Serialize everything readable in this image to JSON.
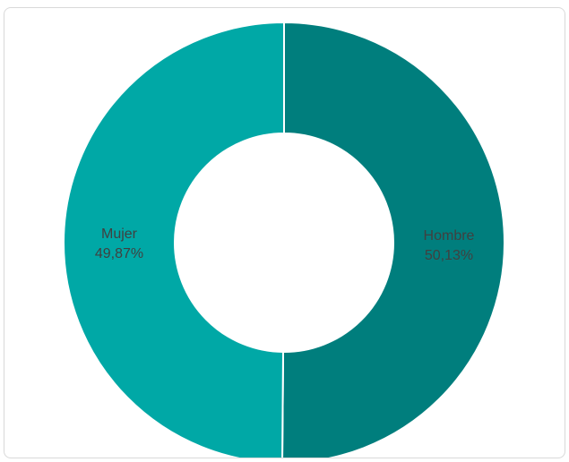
{
  "chart_data": {
    "type": "pie",
    "variant": "donut",
    "categories": [
      "Hombre",
      "Mujer"
    ],
    "values": [
      50.13,
      49.87
    ],
    "value_labels": [
      "50,13%",
      "49,87%"
    ],
    "colors": [
      "#007E7D",
      "#00A8A6"
    ],
    "title": "",
    "legend": "none",
    "data_labels": "category and percentage inside slices"
  }
}
